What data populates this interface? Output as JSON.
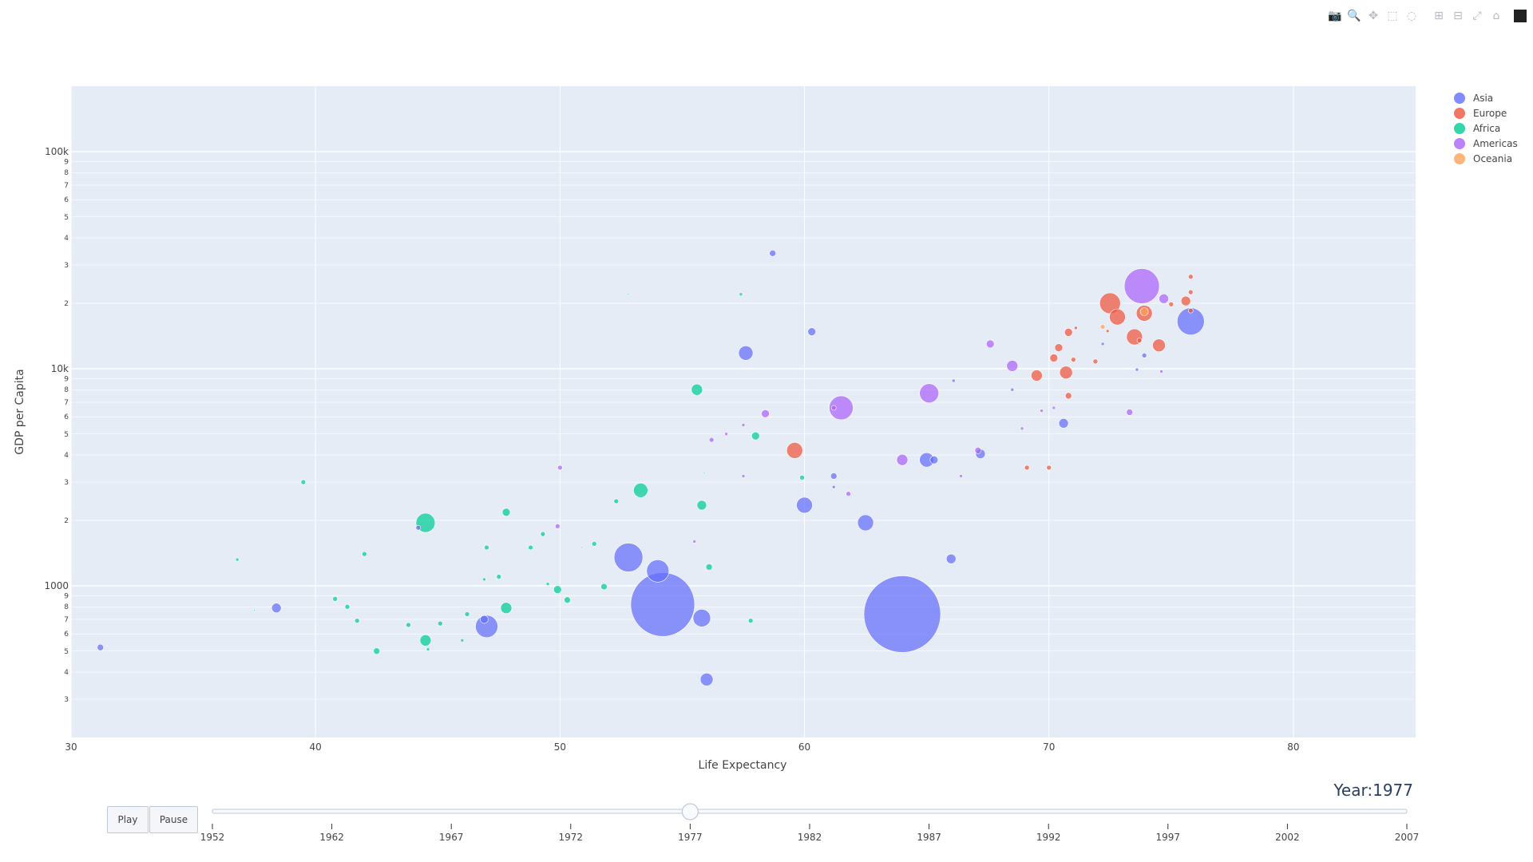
{
  "modebar": {
    "buttons": [
      {
        "name": "camera-icon",
        "glyph": "📷"
      },
      {
        "name": "zoom-icon",
        "glyph": "🔍"
      },
      {
        "name": "pan-icon",
        "glyph": "✥"
      },
      {
        "name": "box-select-icon",
        "glyph": "⬚"
      },
      {
        "name": "lasso-select-icon",
        "glyph": "◌"
      },
      {
        "name": "zoom-in-icon",
        "glyph": "⊞"
      },
      {
        "name": "zoom-out-icon",
        "glyph": "⊟"
      },
      {
        "name": "autoscale-icon",
        "glyph": "⤢"
      },
      {
        "name": "reset-axes-icon",
        "glyph": "⌂"
      }
    ]
  },
  "controls": {
    "play_label": "Play",
    "pause_label": "Pause",
    "year_prefix": "Year:",
    "year_value": "1977"
  },
  "slider": {
    "steps": [
      "1952",
      "1962",
      "1967",
      "1972",
      "1977",
      "1982",
      "1987",
      "1992",
      "1997",
      "2002",
      "2007"
    ],
    "active": "1977"
  },
  "chart_data": {
    "type": "scatter",
    "xlabel": "Life Expectancy",
    "ylabel": "GDP per Capita",
    "xlim": [
      30,
      85
    ],
    "ylim_log": [
      200,
      200000
    ],
    "xticks": [
      30,
      40,
      50,
      60,
      70,
      80
    ],
    "yticks": [
      {
        "v": 1000,
        "t": "1000"
      },
      {
        "v": 10000,
        "t": "10k"
      },
      {
        "v": 100000,
        "t": "100k"
      }
    ],
    "yminor": [
      {
        "v": 300,
        "t": "3"
      },
      {
        "v": 400,
        "t": "4"
      },
      {
        "v": 500,
        "t": "5"
      },
      {
        "v": 600,
        "t": "6"
      },
      {
        "v": 700,
        "t": "7"
      },
      {
        "v": 800,
        "t": "8"
      },
      {
        "v": 900,
        "t": "9"
      },
      {
        "v": 2000,
        "t": "2"
      },
      {
        "v": 3000,
        "t": "3"
      },
      {
        "v": 4000,
        "t": "4"
      },
      {
        "v": 5000,
        "t": "5"
      },
      {
        "v": 6000,
        "t": "6"
      },
      {
        "v": 7000,
        "t": "7"
      },
      {
        "v": 8000,
        "t": "8"
      },
      {
        "v": 9000,
        "t": "9"
      },
      {
        "v": 20000,
        "t": "2"
      },
      {
        "v": 30000,
        "t": "3"
      },
      {
        "v": 40000,
        "t": "4"
      },
      {
        "v": 50000,
        "t": "5"
      },
      {
        "v": 60000,
        "t": "6"
      },
      {
        "v": 70000,
        "t": "7"
      },
      {
        "v": 80000,
        "t": "8"
      },
      {
        "v": 90000,
        "t": "9"
      }
    ],
    "grid": true,
    "legend_position": "top-right",
    "series": [
      {
        "name": "Asia",
        "color": "#636efa",
        "points": [
          [
            64.0,
            740,
            48
          ],
          [
            54.2,
            820,
            40
          ],
          [
            52.8,
            1350,
            18
          ],
          [
            54.0,
            1170,
            14
          ],
          [
            47.0,
            650,
            14
          ],
          [
            55.8,
            710,
            11
          ],
          [
            62.5,
            1950,
            10
          ],
          [
            60.0,
            2350,
            10
          ],
          [
            65.0,
            3800,
            9
          ],
          [
            57.6,
            11800,
            9
          ],
          [
            75.8,
            16500,
            17
          ],
          [
            56.0,
            370,
            8
          ],
          [
            38.4,
            790,
            6
          ],
          [
            31.2,
            520,
            4
          ],
          [
            58.7,
            34000,
            4
          ],
          [
            60.3,
            14800,
            5
          ],
          [
            66.0,
            1330,
            6
          ],
          [
            67.2,
            4050,
            6
          ],
          [
            65.3,
            3800,
            5
          ],
          [
            70.6,
            5600,
            6
          ],
          [
            61.2,
            3200,
            4
          ],
          [
            73.9,
            11500,
            3
          ],
          [
            46.9,
            700,
            5
          ],
          [
            44.2,
            1850,
            3
          ],
          [
            68.5,
            8000,
            2
          ],
          [
            72.2,
            13000,
            2
          ],
          [
            66.1,
            8800,
            2
          ],
          [
            61.2,
            2850,
            2
          ],
          [
            73.6,
            9900,
            2
          ]
        ]
      },
      {
        "name": "Europe",
        "color": "#ef553b",
        "points": [
          [
            72.5,
            20000,
            13
          ],
          [
            72.8,
            17300,
            10
          ],
          [
            73.5,
            14000,
            10
          ],
          [
            73.9,
            18000,
            10
          ],
          [
            74.5,
            12800,
            8
          ],
          [
            75.6,
            20500,
            6
          ],
          [
            69.5,
            9300,
            7
          ],
          [
            70.7,
            9600,
            8
          ],
          [
            70.2,
            11200,
            5
          ],
          [
            70.8,
            14700,
            5
          ],
          [
            70.4,
            12500,
            5
          ],
          [
            70.8,
            7500,
            4
          ],
          [
            71.9,
            10800,
            3
          ],
          [
            75.8,
            26500,
            3
          ],
          [
            75.8,
            22500,
            3
          ],
          [
            75.8,
            18500,
            3
          ],
          [
            75.0,
            19800,
            3
          ],
          [
            59.6,
            4200,
            10
          ],
          [
            70.0,
            3500,
            3
          ],
          [
            69.1,
            3500,
            3
          ],
          [
            71.0,
            11000,
            3
          ],
          [
            73.7,
            13500,
            3
          ],
          [
            72.4,
            14900,
            2
          ],
          [
            71.1,
            15400,
            2
          ]
        ]
      },
      {
        "name": "Africa",
        "color": "#00cc96",
        "points": [
          [
            44.5,
            1950,
            12
          ],
          [
            53.3,
            2750,
            9
          ],
          [
            44.5,
            560,
            7
          ],
          [
            55.6,
            8000,
            7
          ],
          [
            47.8,
            790,
            7
          ],
          [
            58.0,
            4900,
            5
          ],
          [
            55.8,
            2350,
            6
          ],
          [
            36.8,
            1320,
            2
          ],
          [
            39.5,
            3000,
            3
          ],
          [
            42.5,
            500,
            4
          ],
          [
            47.8,
            2180,
            5
          ],
          [
            49.9,
            960,
            5
          ],
          [
            50.3,
            860,
            4
          ],
          [
            51.8,
            990,
            4
          ],
          [
            56.1,
            1220,
            4
          ],
          [
            49.3,
            1730,
            3
          ],
          [
            47.0,
            1500,
            3
          ],
          [
            48.8,
            1500,
            3
          ],
          [
            52.3,
            2450,
            3
          ],
          [
            51.4,
            1560,
            3
          ],
          [
            40.8,
            870,
            3
          ],
          [
            41.3,
            800,
            3
          ],
          [
            41.7,
            690,
            3
          ],
          [
            42.0,
            1400,
            3
          ],
          [
            43.8,
            660,
            3
          ],
          [
            45.1,
            670,
            3
          ],
          [
            46.2,
            740,
            3
          ],
          [
            47.5,
            1100,
            3
          ],
          [
            49.5,
            1020,
            2
          ],
          [
            57.8,
            690,
            3
          ],
          [
            57.4,
            22000,
            2
          ],
          [
            59.9,
            3150,
            3
          ],
          [
            44.6,
            510,
            2
          ],
          [
            46.0,
            560,
            2
          ],
          [
            46.9,
            1070,
            2
          ],
          [
            50.9,
            1500,
            1
          ],
          [
            52.8,
            22000,
            1
          ],
          [
            55.9,
            3300,
            1
          ],
          [
            37.5,
            770,
            1
          ]
        ]
      },
      {
        "name": "Americas",
        "color": "#ab63fa",
        "points": [
          [
            73.8,
            24000,
            22
          ],
          [
            61.5,
            6600,
            15
          ],
          [
            65.1,
            7700,
            12
          ],
          [
            68.5,
            10300,
            7
          ],
          [
            64.0,
            3800,
            7
          ],
          [
            58.4,
            6200,
            5
          ],
          [
            67.6,
            13000,
            5
          ],
          [
            67.1,
            4200,
            4
          ],
          [
            74.7,
            21000,
            6
          ],
          [
            73.3,
            6300,
            4
          ],
          [
            56.2,
            4700,
            3
          ],
          [
            50.0,
            3500,
            3
          ],
          [
            49.9,
            1880,
            3
          ],
          [
            56.8,
            5000,
            2
          ],
          [
            61.8,
            2650,
            3
          ],
          [
            57.5,
            3200,
            2
          ],
          [
            61.2,
            6600,
            3
          ],
          [
            69.7,
            6400,
            2
          ],
          [
            70.2,
            6600,
            2
          ],
          [
            68.9,
            5300,
            2
          ],
          [
            66.4,
            3200,
            2
          ],
          [
            57.5,
            5500,
            2
          ],
          [
            74.6,
            9700,
            2
          ],
          [
            55.5,
            1600,
            2
          ]
        ]
      },
      {
        "name": "Oceania",
        "color": "#ffa15a",
        "points": [
          [
            73.9,
            18300,
            5
          ],
          [
            72.2,
            15600,
            3
          ]
        ]
      }
    ]
  }
}
